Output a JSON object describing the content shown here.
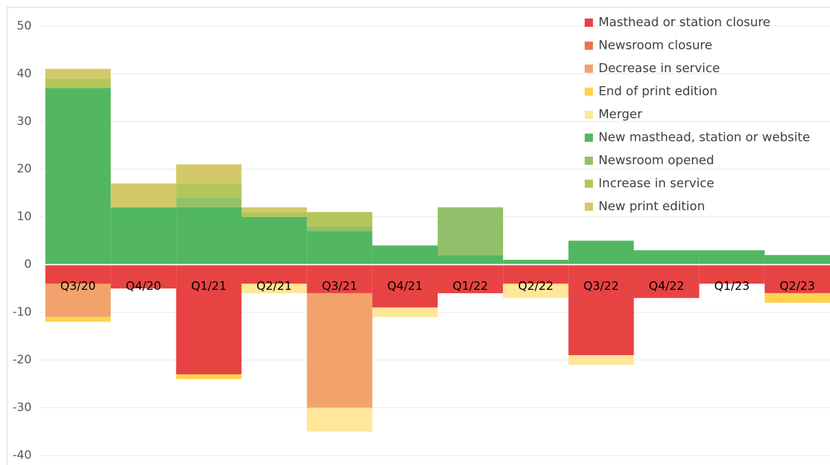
{
  "chart_data": {
    "type": "stacked_bar",
    "categories": [
      "Q3/20",
      "Q4/20",
      "Q1/21",
      "Q2/21",
      "Q3/21",
      "Q4/21",
      "Q1/22",
      "Q2/22",
      "Q3/22",
      "Q4/22",
      "Q1/23",
      "Q2/23"
    ],
    "series": [
      {
        "name": "Masthead or station closure",
        "color": "#e84343",
        "values": [
          -4,
          -5,
          -23,
          -4,
          -6,
          -9,
          -6,
          -4,
          -19,
          -7,
          -4,
          -6
        ]
      },
      {
        "name": "Newsroom closure",
        "color": "#e8734a",
        "values": [
          0,
          0,
          0,
          0,
          0,
          0,
          0,
          0,
          0,
          0,
          0,
          0
        ]
      },
      {
        "name": "Decrease in service",
        "color": "#f2a36b",
        "values": [
          -7,
          0,
          0,
          0,
          -24,
          0,
          0,
          0,
          0,
          0,
          0,
          0
        ]
      },
      {
        "name": "End of print edition",
        "color": "#ffd34f",
        "values": [
          -1,
          0,
          -1,
          0,
          0,
          0,
          0,
          0,
          0,
          0,
          0,
          -2
        ]
      },
      {
        "name": "Merger",
        "color": "#ffe699",
        "values": [
          0,
          0,
          0,
          -2,
          -5,
          -2,
          0,
          -3,
          -2,
          0,
          0,
          0
        ]
      },
      {
        "name": "New masthead, station or website",
        "color": "#52b760",
        "values": [
          37,
          12,
          12,
          10,
          7,
          4,
          2,
          1,
          5,
          3,
          3,
          2
        ]
      },
      {
        "name": "Newsroom opened",
        "color": "#93c06a",
        "values": [
          0,
          0,
          2,
          0,
          1,
          0,
          10,
          0,
          0,
          0,
          0,
          0
        ]
      },
      {
        "name": "Increase in service",
        "color": "#b3c65a",
        "values": [
          2,
          0,
          3,
          1,
          3,
          0,
          0,
          0,
          0,
          0,
          0,
          0
        ]
      },
      {
        "name": "New print edition",
        "color": "#d4c96a",
        "values": [
          2,
          5,
          4,
          1,
          0,
          0,
          0,
          0,
          0,
          0,
          0,
          0
        ]
      }
    ],
    "ylim": [
      -42,
      54
    ],
    "yticks": [
      -40,
      -30,
      -20,
      -10,
      0,
      10,
      20,
      30,
      40,
      50
    ],
    "grid": true,
    "legend": "top-right"
  }
}
